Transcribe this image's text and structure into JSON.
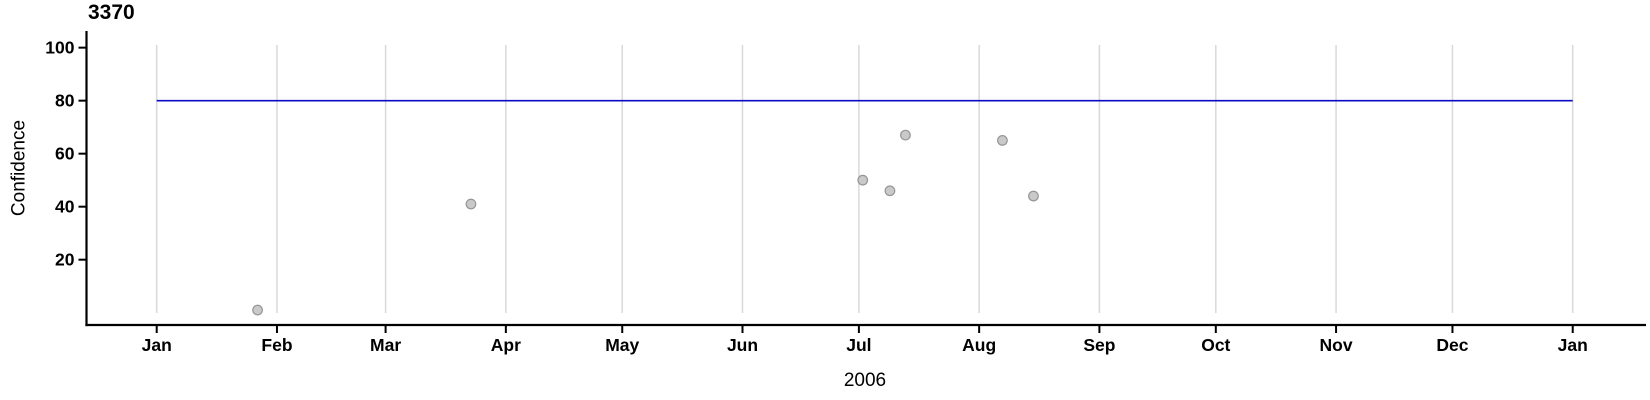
{
  "chart_data": {
    "type": "scatter",
    "title": "3370",
    "xlabel": "2006",
    "ylabel": "Confidence",
    "x_domain": [
      "2006-01-01",
      "2007-01-01"
    ],
    "ylim": [
      0,
      100
    ],
    "y_ticks": [
      20,
      40,
      60,
      80,
      100
    ],
    "x_ticks": [
      {
        "date": "2006-01-01",
        "label": "Jan"
      },
      {
        "date": "2006-02-01",
        "label": "Feb"
      },
      {
        "date": "2006-03-01",
        "label": "Mar"
      },
      {
        "date": "2006-04-01",
        "label": "Apr"
      },
      {
        "date": "2006-05-01",
        "label": "May"
      },
      {
        "date": "2006-06-01",
        "label": "Jun"
      },
      {
        "date": "2006-07-01",
        "label": "Jul"
      },
      {
        "date": "2006-08-01",
        "label": "Aug"
      },
      {
        "date": "2006-09-01",
        "label": "Sep"
      },
      {
        "date": "2006-10-01",
        "label": "Oct"
      },
      {
        "date": "2006-11-01",
        "label": "Nov"
      },
      {
        "date": "2006-12-01",
        "label": "Dec"
      },
      {
        "date": "2007-01-01",
        "label": "Jan"
      }
    ],
    "reference_line": {
      "y": 80,
      "span": [
        "2006-01-01",
        "2007-01-01"
      ]
    },
    "points": [
      {
        "date": "2006-01-27",
        "confidence": 1
      },
      {
        "date": "2006-03-23",
        "confidence": 41
      },
      {
        "date": "2006-07-02",
        "confidence": 50
      },
      {
        "date": "2006-07-09",
        "confidence": 46
      },
      {
        "date": "2006-07-13",
        "confidence": 67
      },
      {
        "date": "2006-08-07",
        "confidence": 65
      },
      {
        "date": "2006-08-15",
        "confidence": 44
      }
    ],
    "grid": "vertical-month-gridlines",
    "legend": "none",
    "colors": {
      "point_fill": "#c9c9c9",
      "point_stroke": "#969696",
      "grid": "#d9d9d9",
      "axis": "#000000",
      "reference_line": "#0b0bc4",
      "background": "#ffffff",
      "text": "#000000"
    }
  }
}
